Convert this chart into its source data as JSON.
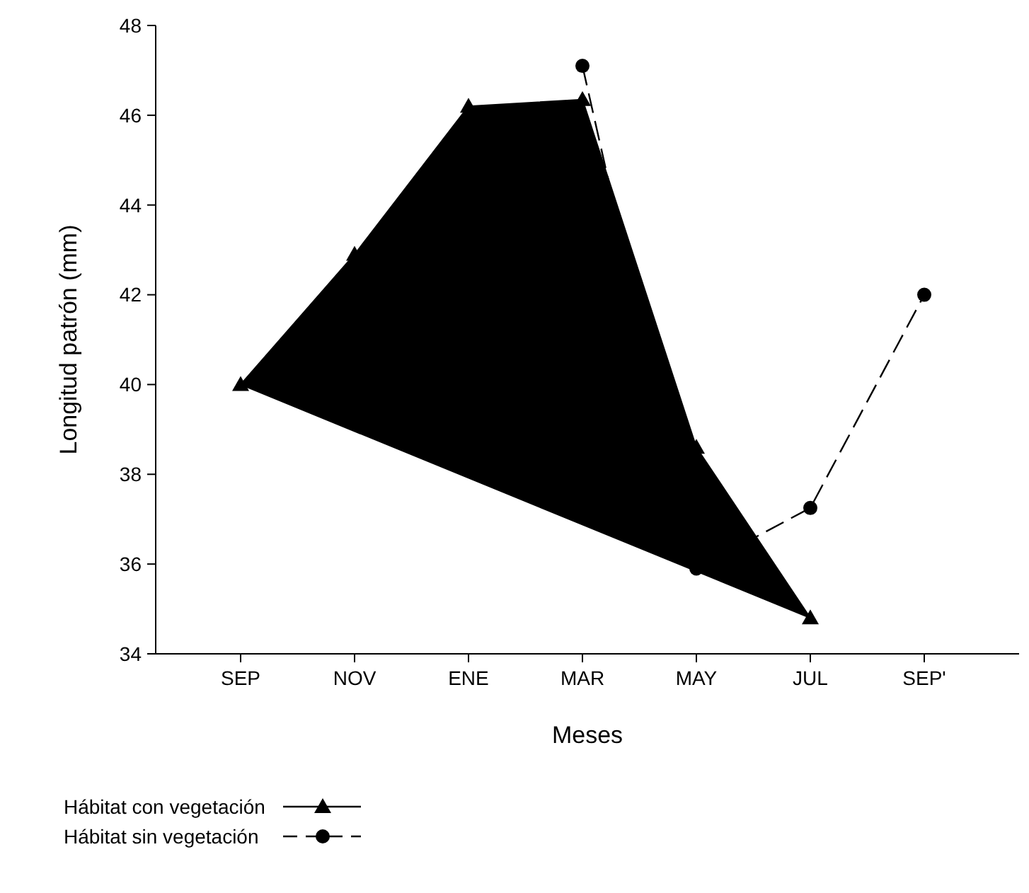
{
  "chart_data": {
    "type": "line",
    "xlabel": "Meses",
    "ylabel": "Longitud patrón (mm)",
    "categories": [
      "SEP",
      "NOV",
      "ENE",
      "MAR",
      "MAY",
      "JUL",
      "SEP'"
    ],
    "ylim": [
      34,
      48
    ],
    "yticks": [
      34,
      36,
      38,
      40,
      42,
      44,
      46,
      48
    ],
    "grid": false,
    "legend": "bottom left",
    "series": [
      {
        "name": "Hábitat con vegetación",
        "type": "area",
        "color": "#000000",
        "marker": "triangle",
        "line_style": "solid",
        "values": [
          40.0,
          42.9,
          46.2,
          46.35,
          38.6,
          34.8,
          null
        ]
      },
      {
        "name": "Hábitat sin vegetación",
        "color": "#000000",
        "marker": "circle",
        "line_style": "dashed",
        "values": [
          null,
          null,
          null,
          47.1,
          35.9,
          37.25,
          42.0
        ]
      }
    ]
  }
}
